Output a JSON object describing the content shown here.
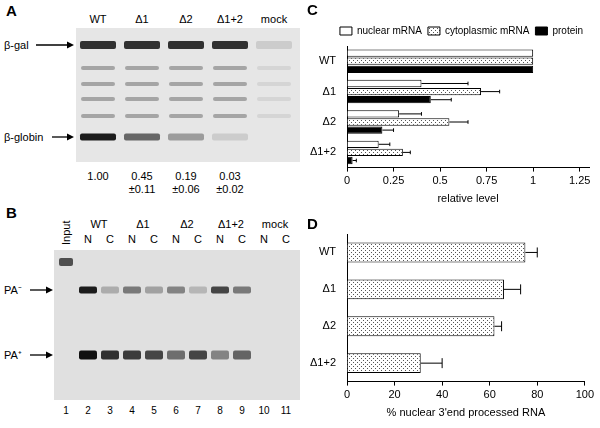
{
  "chart_data": [
    {
      "type": "bar",
      "title": "C",
      "orientation": "horizontal",
      "categories": [
        "WT",
        "Δ1",
        "Δ2",
        "Δ1+2"
      ],
      "series": [
        {
          "name": "nuclear mRNA",
          "color": "#ffffff",
          "values": [
            1,
            0.4,
            0.28,
            0.17
          ],
          "errors": [
            null,
            0.25,
            0.12,
            0.06
          ]
        },
        {
          "name": "cytoplasmic mRNA",
          "color": "#ffffff",
          "marker": "dots",
          "values": [
            1,
            0.72,
            0.55,
            0.3
          ],
          "errors": [
            null,
            0.1,
            0.1,
            0.04
          ]
        },
        {
          "name": "protein",
          "color": "#000000",
          "values": [
            1,
            0.45,
            0.19,
            0.03
          ],
          "errors": [
            null,
            0.11,
            0.06,
            0.02
          ]
        }
      ],
      "x_label": "relative level",
      "xlim": [
        0,
        1.3
      ],
      "xticks": [
        0,
        0.25,
        0.5,
        0.75,
        1,
        1.25
      ],
      "grid": false,
      "legend": "upper right"
    },
    {
      "type": "bar",
      "title": "D",
      "orientation": "horizontal",
      "categories": [
        "WT",
        "Δ1",
        "Δ2",
        "Δ1+2"
      ],
      "values": [
        75,
        66,
        62,
        31
      ],
      "errors": [
        5,
        7,
        3,
        9
      ],
      "color": "#ffffff",
      "marker": "dots",
      "x_label": "% nuclear 3'end processed RNA",
      "xlim": [
        0,
        100
      ],
      "xticks": [
        0,
        20,
        40,
        60,
        80,
        100
      ],
      "grid": false
    }
  ],
  "blots": [
    {
      "title": "A",
      "lanes": [
        "WT",
        "Δ1",
        "Δ2",
        "Δ1+2",
        "mock"
      ],
      "bands": [
        "β-gal",
        "β-globin"
      ],
      "quantification": [
        {
          "value": "1.00"
        },
        {
          "value": "0.45",
          "error": "±0.11"
        },
        {
          "value": "0.19",
          "error": "±0.06"
        },
        {
          "value": "0.03",
          "error": "±0.02"
        }
      ]
    },
    {
      "title": "B",
      "input_lane": "Input",
      "lanes": [
        "WT",
        "Δ1",
        "Δ2",
        "Δ1+2",
        "mock"
      ],
      "fractions": [
        "N",
        "C"
      ],
      "bands": [
        "PA⁻",
        "PA⁺"
      ],
      "lane_numbers": [
        "1",
        "2",
        "3",
        "4",
        "5",
        "6",
        "7",
        "8",
        "9",
        "10",
        "11"
      ]
    }
  ]
}
